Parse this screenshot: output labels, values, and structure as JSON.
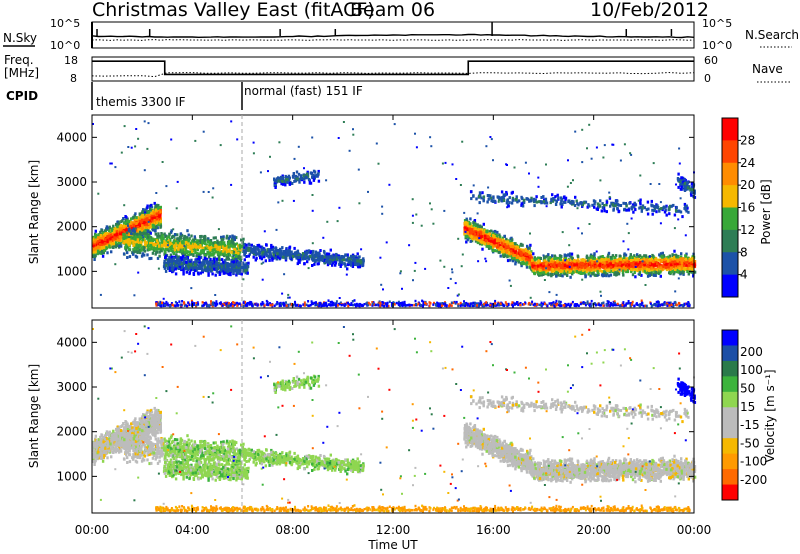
{
  "header": {
    "title": "Christmas Valley East (fitACF)",
    "beam": "Beam 06",
    "date": "10/Feb/2012"
  },
  "left_labels": {
    "nsky": "N.Sky",
    "freq_line1": "Freq.",
    "freq_line2": "[MHz]",
    "cpid": "CPID"
  },
  "right_labels": {
    "nsearch": "N.Search",
    "nave": "Nave"
  },
  "colors": {
    "power_scale": [
      "#0000ff",
      "#1c52a8",
      "#2e7d55",
      "#38a838",
      "#f5b800",
      "#ff8c00",
      "#ff4500",
      "#ff0000"
    ],
    "velocity_scale": [
      "#ff0000",
      "#ff6a00",
      "#ff9a00",
      "#f5b800",
      "#bcbcbc",
      "#bcbcbc",
      "#8fd650",
      "#3cb33c",
      "#2a7a4a",
      "#1c4fa6",
      "#0000ff"
    ]
  },
  "chart_data": [
    {
      "type": "line",
      "name": "noise-panel",
      "series": [
        {
          "name": "N.Sky"
        },
        {
          "name": "N.Search"
        }
      ],
      "yticks_left": [
        "10^5",
        "10^0"
      ],
      "yticks_right": [
        "10^5",
        "10^0"
      ]
    },
    {
      "type": "line",
      "name": "freq-nave-panel",
      "series": [
        {
          "name": "Freq."
        },
        {
          "name": "Nave"
        }
      ],
      "yticks_left": [
        "18",
        "8"
      ],
      "yticks_right": [
        "60",
        "0"
      ],
      "freq_steps": [
        {
          "from": 0.0,
          "to": 2.9,
          "value": 17
        },
        {
          "from": 2.9,
          "to": 15.0,
          "value": 11
        },
        {
          "from": 15.0,
          "to": 24.0,
          "value": 17
        }
      ]
    },
    {
      "type": "table",
      "name": "cpid-panel",
      "segments": [
        {
          "start_hour": 0.0,
          "end_hour": 6.0,
          "label": "themis 3300 IF"
        },
        {
          "start_hour": 6.0,
          "end_hour": 24.0,
          "label": "normal (fast) 151 IF"
        }
      ]
    },
    {
      "type": "heatmap",
      "name": "power-rti",
      "ylabel": "Slant Range [km]",
      "yticks": [
        1000,
        2000,
        3000,
        4000
      ],
      "ylim": [
        180,
        4500
      ],
      "colorbar_label": "Power [dB]",
      "colorbar_ticks": [
        4,
        8,
        12,
        16,
        20,
        24,
        28
      ]
    },
    {
      "type": "heatmap",
      "name": "velocity-rti",
      "ylabel": "Slant Range [km]",
      "yticks": [
        1000,
        2000,
        3000,
        4000
      ],
      "ylim": [
        180,
        4500
      ],
      "colorbar_label": "Velocity [m s⁻¹]",
      "colorbar_ticks": [
        "200",
        "100",
        "50",
        "15",
        "-15",
        "-50",
        "-100",
        "-200"
      ]
    }
  ],
  "xaxis": {
    "label": "Time UT",
    "ticks": [
      "00:00",
      "04:00",
      "08:00",
      "12:00",
      "16:00",
      "20:00",
      "00:00"
    ],
    "xlim": [
      0,
      24
    ]
  }
}
